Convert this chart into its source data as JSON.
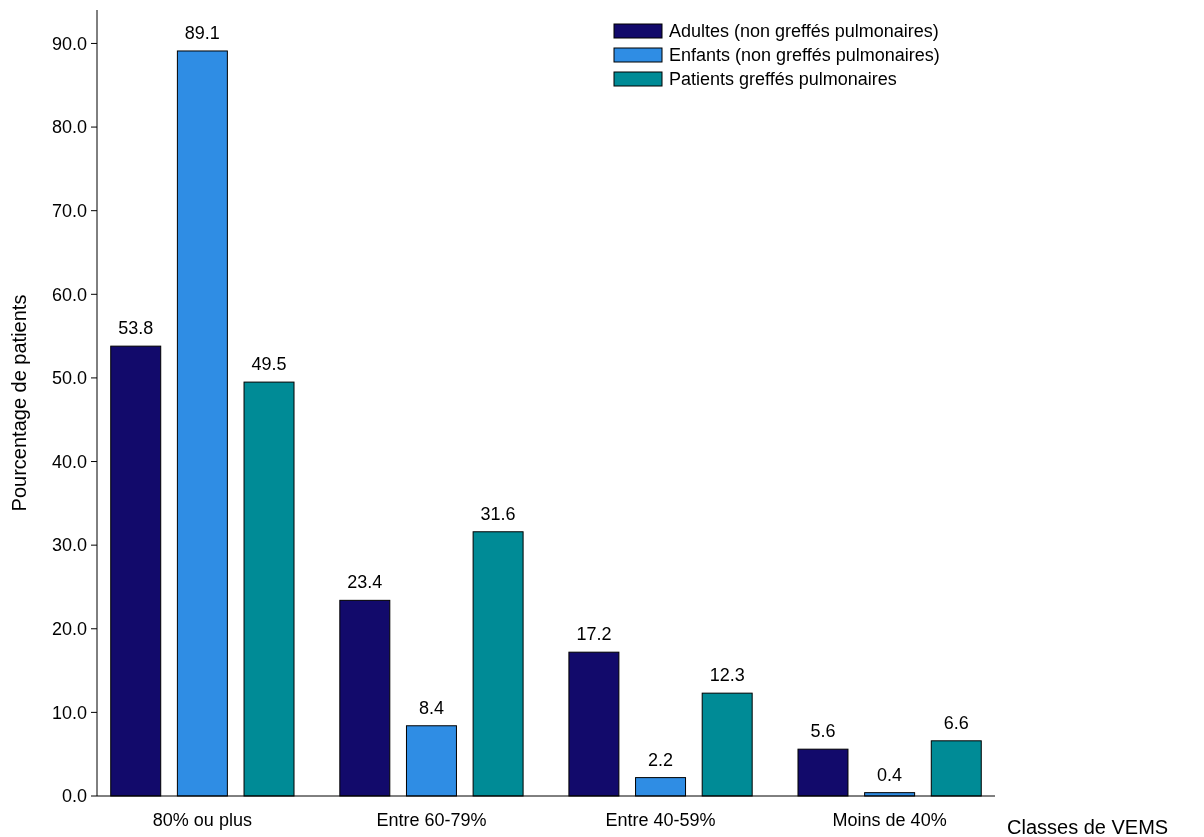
{
  "chart_data": {
    "type": "bar",
    "xlabel": "Classes de VEMS",
    "ylabel": "Pourcentage de patients",
    "categories": [
      "80% ou plus",
      "Entre 60-79%",
      "Entre 40-59%",
      "Moins de 40%"
    ],
    "series": [
      {
        "name": "Adultes (non greffés pulmonaires)",
        "color": "#120a6b",
        "values": [
          53.8,
          23.4,
          17.2,
          5.6
        ]
      },
      {
        "name": "Enfants (non greffés pulmonaires)",
        "color": "#2f8de4",
        "values": [
          89.1,
          8.4,
          2.2,
          0.4
        ]
      },
      {
        "name": "Patients greffés pulmonaires",
        "color": "#008b96",
        "values": [
          49.5,
          31.6,
          12.3,
          6.6
        ]
      }
    ],
    "ylim": [
      0,
      94
    ],
    "yticks": [
      {
        "value": 0,
        "label": "0.0"
      },
      {
        "value": 10,
        "label": "10.0"
      },
      {
        "value": 20,
        "label": "20.0"
      },
      {
        "value": 30,
        "label": "30.0"
      },
      {
        "value": 40,
        "label": "40.0"
      },
      {
        "value": 50,
        "label": "50.0"
      },
      {
        "value": 60,
        "label": "60.0"
      },
      {
        "value": 70,
        "label": "70.0"
      },
      {
        "value": 80,
        "label": "80.0"
      },
      {
        "value": 90,
        "label": "90.0"
      }
    ],
    "data_labels": true,
    "legend": "top right",
    "grid": false
  }
}
